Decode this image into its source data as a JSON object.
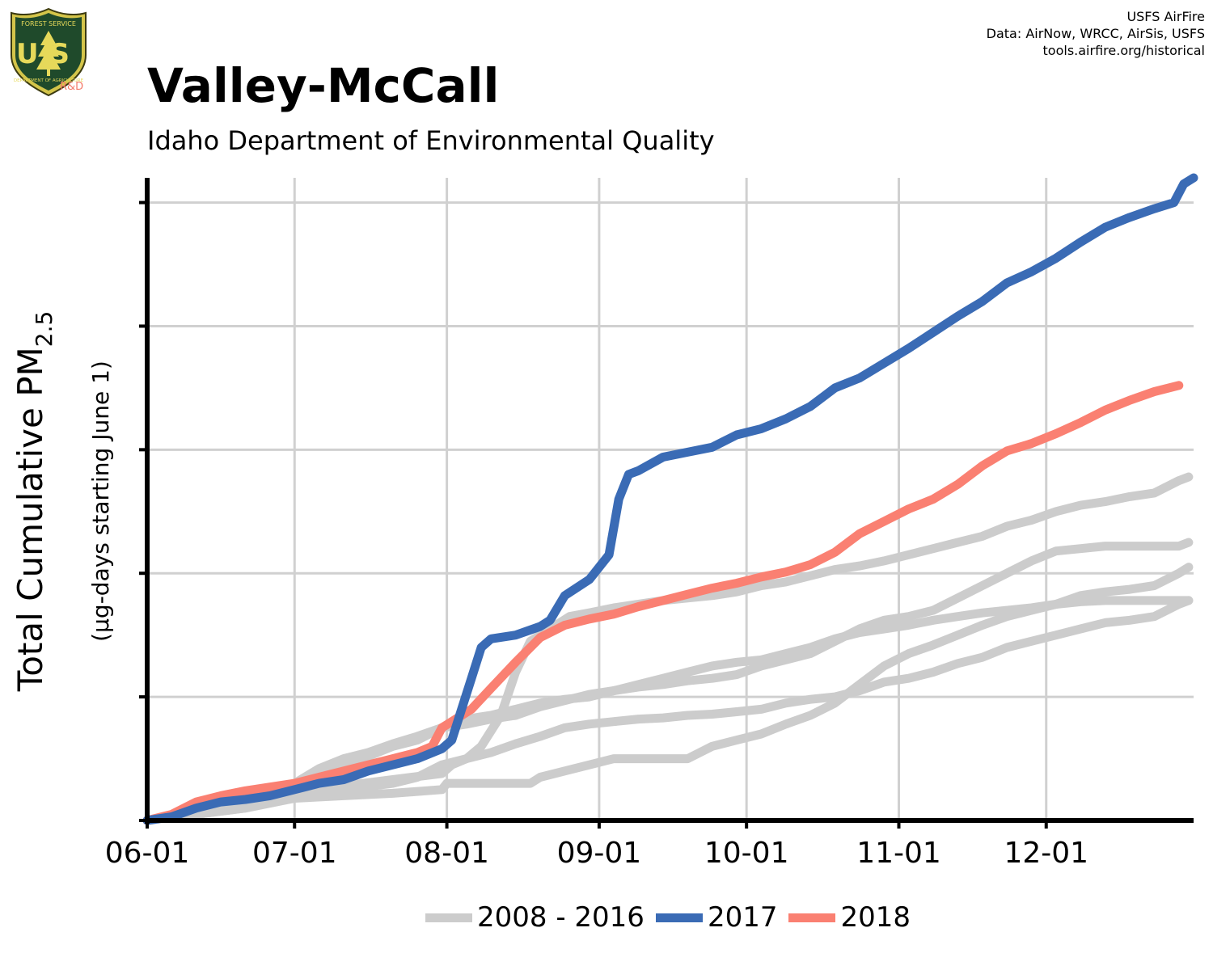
{
  "header": {
    "title": "Valley-McCall",
    "subtitle": "Idaho Department of Environmental Quality",
    "credits": [
      "USFS AirFire",
      "Data: AirNow, WRCC, AirSis, USFS",
      "tools.airfire.org/historical"
    ],
    "logo_text_top": "FOREST SERVICE",
    "logo_letters": "US",
    "logo_text_bottom": "DEPARTMENT OF AGRICULTURE",
    "logo_suffix": "R&D"
  },
  "colors": {
    "historical": "#cccccc",
    "y2017": "#3a6bb5",
    "y2018": "#fa8072",
    "grid": "#d0d0d0",
    "axis": "#000000"
  },
  "chart_data": {
    "type": "line",
    "title": "Valley-McCall",
    "subtitle": "Idaho Department of Environmental Quality",
    "ylabel_main": "Total Cumulative PM",
    "ylabel_sub": "2.5",
    "ylabel_units": "(µg-days starting June 1)",
    "x_ticks": [
      "06-01",
      "07-01",
      "08-01",
      "09-01",
      "10-01",
      "11-01",
      "12-01"
    ],
    "x_tick_days": [
      0,
      30,
      61,
      92,
      122,
      153,
      183
    ],
    "xlim": [
      0,
      213
    ],
    "ylim": [
      0,
      5.2
    ],
    "y_ticks": [
      0,
      1,
      2,
      3,
      4,
      5
    ],
    "y_tick_labels_shown": false,
    "grid": true,
    "legend_position": "bottom",
    "legend": [
      "2008 - 2016",
      "2017",
      "2018"
    ],
    "series": [
      {
        "name": "2017",
        "group": "2017",
        "points": [
          [
            0,
            0
          ],
          [
            5,
            0.03
          ],
          [
            10,
            0.1
          ],
          [
            15,
            0.15
          ],
          [
            20,
            0.17
          ],
          [
            25,
            0.2
          ],
          [
            30,
            0.25
          ],
          [
            35,
            0.3
          ],
          [
            40,
            0.33
          ],
          [
            45,
            0.4
          ],
          [
            50,
            0.45
          ],
          [
            55,
            0.5
          ],
          [
            60,
            0.58
          ],
          [
            62,
            0.65
          ],
          [
            64,
            0.9
          ],
          [
            66,
            1.15
          ],
          [
            68,
            1.4
          ],
          [
            70,
            1.47
          ],
          [
            75,
            1.5
          ],
          [
            80,
            1.57
          ],
          [
            82,
            1.62
          ],
          [
            85,
            1.82
          ],
          [
            90,
            1.95
          ],
          [
            94,
            2.15
          ],
          [
            96,
            2.6
          ],
          [
            98,
            2.8
          ],
          [
            100,
            2.83
          ],
          [
            105,
            2.94
          ],
          [
            110,
            2.98
          ],
          [
            115,
            3.02
          ],
          [
            120,
            3.12
          ],
          [
            125,
            3.17
          ],
          [
            130,
            3.25
          ],
          [
            135,
            3.35
          ],
          [
            140,
            3.5
          ],
          [
            145,
            3.58
          ],
          [
            150,
            3.7
          ],
          [
            155,
            3.82
          ],
          [
            160,
            3.95
          ],
          [
            165,
            4.08
          ],
          [
            170,
            4.2
          ],
          [
            175,
            4.35
          ],
          [
            180,
            4.44
          ],
          [
            185,
            4.55
          ],
          [
            190,
            4.68
          ],
          [
            195,
            4.8
          ],
          [
            200,
            4.88
          ],
          [
            205,
            4.95
          ],
          [
            209,
            5.0
          ],
          [
            211,
            5.15
          ],
          [
            213,
            5.2
          ]
        ]
      },
      {
        "name": "2018",
        "group": "2018",
        "points": [
          [
            0,
            0
          ],
          [
            5,
            0.05
          ],
          [
            10,
            0.15
          ],
          [
            15,
            0.2
          ],
          [
            20,
            0.24
          ],
          [
            25,
            0.27
          ],
          [
            30,
            0.3
          ],
          [
            35,
            0.35
          ],
          [
            40,
            0.4
          ],
          [
            45,
            0.45
          ],
          [
            50,
            0.5
          ],
          [
            55,
            0.55
          ],
          [
            58,
            0.6
          ],
          [
            60,
            0.75
          ],
          [
            62,
            0.8
          ],
          [
            66,
            0.9
          ],
          [
            70,
            1.07
          ],
          [
            75,
            1.28
          ],
          [
            80,
            1.48
          ],
          [
            85,
            1.58
          ],
          [
            90,
            1.63
          ],
          [
            95,
            1.67
          ],
          [
            100,
            1.73
          ],
          [
            105,
            1.78
          ],
          [
            110,
            1.83
          ],
          [
            115,
            1.88
          ],
          [
            120,
            1.92
          ],
          [
            125,
            1.97
          ],
          [
            130,
            2.01
          ],
          [
            135,
            2.07
          ],
          [
            140,
            2.17
          ],
          [
            145,
            2.32
          ],
          [
            150,
            2.42
          ],
          [
            155,
            2.52
          ],
          [
            160,
            2.6
          ],
          [
            165,
            2.72
          ],
          [
            170,
            2.87
          ],
          [
            175,
            2.99
          ],
          [
            180,
            3.05
          ],
          [
            185,
            3.13
          ],
          [
            190,
            3.22
          ],
          [
            195,
            3.32
          ],
          [
            200,
            3.4
          ],
          [
            205,
            3.47
          ],
          [
            210,
            3.52
          ]
        ]
      },
      {
        "group": "2008 - 2016",
        "points": [
          [
            0,
            0
          ],
          [
            10,
            0.08
          ],
          [
            20,
            0.15
          ],
          [
            30,
            0.25
          ],
          [
            35,
            0.38
          ],
          [
            40,
            0.45
          ],
          [
            45,
            0.52
          ],
          [
            50,
            0.6
          ],
          [
            55,
            0.65
          ],
          [
            60,
            0.75
          ],
          [
            65,
            0.78
          ],
          [
            70,
            0.82
          ],
          [
            75,
            0.85
          ],
          [
            80,
            0.92
          ],
          [
            85,
            0.97
          ],
          [
            90,
            1.02
          ],
          [
            95,
            1.05
          ],
          [
            100,
            1.1
          ],
          [
            105,
            1.15
          ],
          [
            110,
            1.2
          ],
          [
            115,
            1.25
          ],
          [
            120,
            1.28
          ],
          [
            125,
            1.3
          ],
          [
            130,
            1.35
          ],
          [
            135,
            1.4
          ],
          [
            140,
            1.47
          ],
          [
            145,
            1.52
          ],
          [
            150,
            1.55
          ],
          [
            155,
            1.58
          ],
          [
            160,
            1.62
          ],
          [
            165,
            1.65
          ],
          [
            170,
            1.68
          ],
          [
            175,
            1.7
          ],
          [
            180,
            1.72
          ],
          [
            185,
            1.75
          ],
          [
            190,
            1.77
          ],
          [
            195,
            1.78
          ],
          [
            200,
            1.78
          ],
          [
            205,
            1.78
          ],
          [
            210,
            1.78
          ],
          [
            212,
            1.78
          ]
        ]
      },
      {
        "group": "2008 - 2016",
        "points": [
          [
            0,
            0
          ],
          [
            10,
            0.05
          ],
          [
            20,
            0.1
          ],
          [
            30,
            0.2
          ],
          [
            40,
            0.25
          ],
          [
            50,
            0.3
          ],
          [
            55,
            0.35
          ],
          [
            60,
            0.45
          ],
          [
            65,
            0.5
          ],
          [
            70,
            0.55
          ],
          [
            75,
            0.62
          ],
          [
            80,
            0.68
          ],
          [
            85,
            0.75
          ],
          [
            90,
            0.78
          ],
          [
            95,
            0.8
          ],
          [
            100,
            0.82
          ],
          [
            105,
            0.83
          ],
          [
            110,
            0.85
          ],
          [
            115,
            0.86
          ],
          [
            120,
            0.88
          ],
          [
            125,
            0.9
          ],
          [
            130,
            0.95
          ],
          [
            135,
            0.98
          ],
          [
            140,
            1.0
          ],
          [
            145,
            1.05
          ],
          [
            150,
            1.12
          ],
          [
            155,
            1.15
          ],
          [
            160,
            1.2
          ],
          [
            165,
            1.27
          ],
          [
            170,
            1.32
          ],
          [
            175,
            1.4
          ],
          [
            180,
            1.45
          ],
          [
            185,
            1.5
          ],
          [
            190,
            1.55
          ],
          [
            195,
            1.6
          ],
          [
            200,
            1.62
          ],
          [
            205,
            1.65
          ],
          [
            210,
            1.75
          ],
          [
            212,
            1.78
          ]
        ]
      },
      {
        "group": "2008 - 2016",
        "points": [
          [
            0,
            0
          ],
          [
            10,
            0.05
          ],
          [
            20,
            0.1
          ],
          [
            30,
            0.18
          ],
          [
            40,
            0.2
          ],
          [
            50,
            0.22
          ],
          [
            60,
            0.25
          ],
          [
            61,
            0.3
          ],
          [
            70,
            0.3
          ],
          [
            75,
            0.3
          ],
          [
            78,
            0.3
          ],
          [
            80,
            0.35
          ],
          [
            85,
            0.4
          ],
          [
            90,
            0.45
          ],
          [
            95,
            0.5
          ],
          [
            100,
            0.5
          ],
          [
            110,
            0.5
          ],
          [
            115,
            0.6
          ],
          [
            120,
            0.65
          ],
          [
            125,
            0.7
          ],
          [
            130,
            0.78
          ],
          [
            135,
            0.85
          ],
          [
            140,
            0.95
          ],
          [
            145,
            1.1
          ],
          [
            150,
            1.25
          ],
          [
            155,
            1.35
          ],
          [
            160,
            1.42
          ],
          [
            165,
            1.5
          ],
          [
            170,
            1.58
          ],
          [
            175,
            1.65
          ],
          [
            180,
            1.7
          ],
          [
            185,
            1.75
          ],
          [
            190,
            1.82
          ],
          [
            195,
            1.85
          ],
          [
            200,
            1.87
          ],
          [
            205,
            1.9
          ],
          [
            210,
            2.0
          ],
          [
            212,
            2.05
          ]
        ]
      },
      {
        "group": "2008 - 2016",
        "points": [
          [
            0,
            0
          ],
          [
            10,
            0.07
          ],
          [
            20,
            0.14
          ],
          [
            30,
            0.22
          ],
          [
            40,
            0.28
          ],
          [
            50,
            0.33
          ],
          [
            60,
            0.38
          ],
          [
            62,
            0.45
          ],
          [
            65,
            0.5
          ],
          [
            68,
            0.6
          ],
          [
            72,
            0.85
          ],
          [
            75,
            1.2
          ],
          [
            78,
            1.45
          ],
          [
            82,
            1.55
          ],
          [
            86,
            1.65
          ],
          [
            90,
            1.68
          ],
          [
            95,
            1.72
          ],
          [
            100,
            1.75
          ],
          [
            105,
            1.78
          ],
          [
            110,
            1.8
          ],
          [
            115,
            1.82
          ],
          [
            120,
            1.85
          ],
          [
            125,
            1.9
          ],
          [
            130,
            1.93
          ],
          [
            135,
            1.98
          ],
          [
            140,
            2.03
          ],
          [
            145,
            2.06
          ],
          [
            150,
            2.1
          ],
          [
            155,
            2.15
          ],
          [
            160,
            2.2
          ],
          [
            165,
            2.25
          ],
          [
            170,
            2.3
          ],
          [
            175,
            2.38
          ],
          [
            180,
            2.43
          ],
          [
            185,
            2.5
          ],
          [
            190,
            2.55
          ],
          [
            195,
            2.58
          ],
          [
            200,
            2.62
          ],
          [
            205,
            2.65
          ],
          [
            210,
            2.75
          ],
          [
            212,
            2.78
          ]
        ]
      },
      {
        "group": "2008 - 2016",
        "points": [
          [
            0,
            0
          ],
          [
            10,
            0.08
          ],
          [
            20,
            0.18
          ],
          [
            30,
            0.3
          ],
          [
            35,
            0.42
          ],
          [
            40,
            0.5
          ],
          [
            45,
            0.55
          ],
          [
            50,
            0.62
          ],
          [
            55,
            0.68
          ],
          [
            60,
            0.75
          ],
          [
            65,
            0.82
          ],
          [
            70,
            0.85
          ],
          [
            75,
            0.9
          ],
          [
            80,
            0.95
          ],
          [
            85,
            0.98
          ],
          [
            90,
            1.0
          ],
          [
            95,
            1.05
          ],
          [
            100,
            1.08
          ],
          [
            105,
            1.1
          ],
          [
            110,
            1.13
          ],
          [
            115,
            1.15
          ],
          [
            120,
            1.18
          ],
          [
            125,
            1.25
          ],
          [
            130,
            1.3
          ],
          [
            135,
            1.35
          ],
          [
            140,
            1.45
          ],
          [
            145,
            1.55
          ],
          [
            150,
            1.62
          ],
          [
            155,
            1.65
          ],
          [
            160,
            1.7
          ],
          [
            165,
            1.8
          ],
          [
            170,
            1.9
          ],
          [
            175,
            2.0
          ],
          [
            180,
            2.1
          ],
          [
            185,
            2.18
          ],
          [
            190,
            2.2
          ],
          [
            195,
            2.22
          ],
          [
            200,
            2.22
          ],
          [
            205,
            2.22
          ],
          [
            210,
            2.22
          ],
          [
            212,
            2.25
          ]
        ]
      }
    ]
  }
}
